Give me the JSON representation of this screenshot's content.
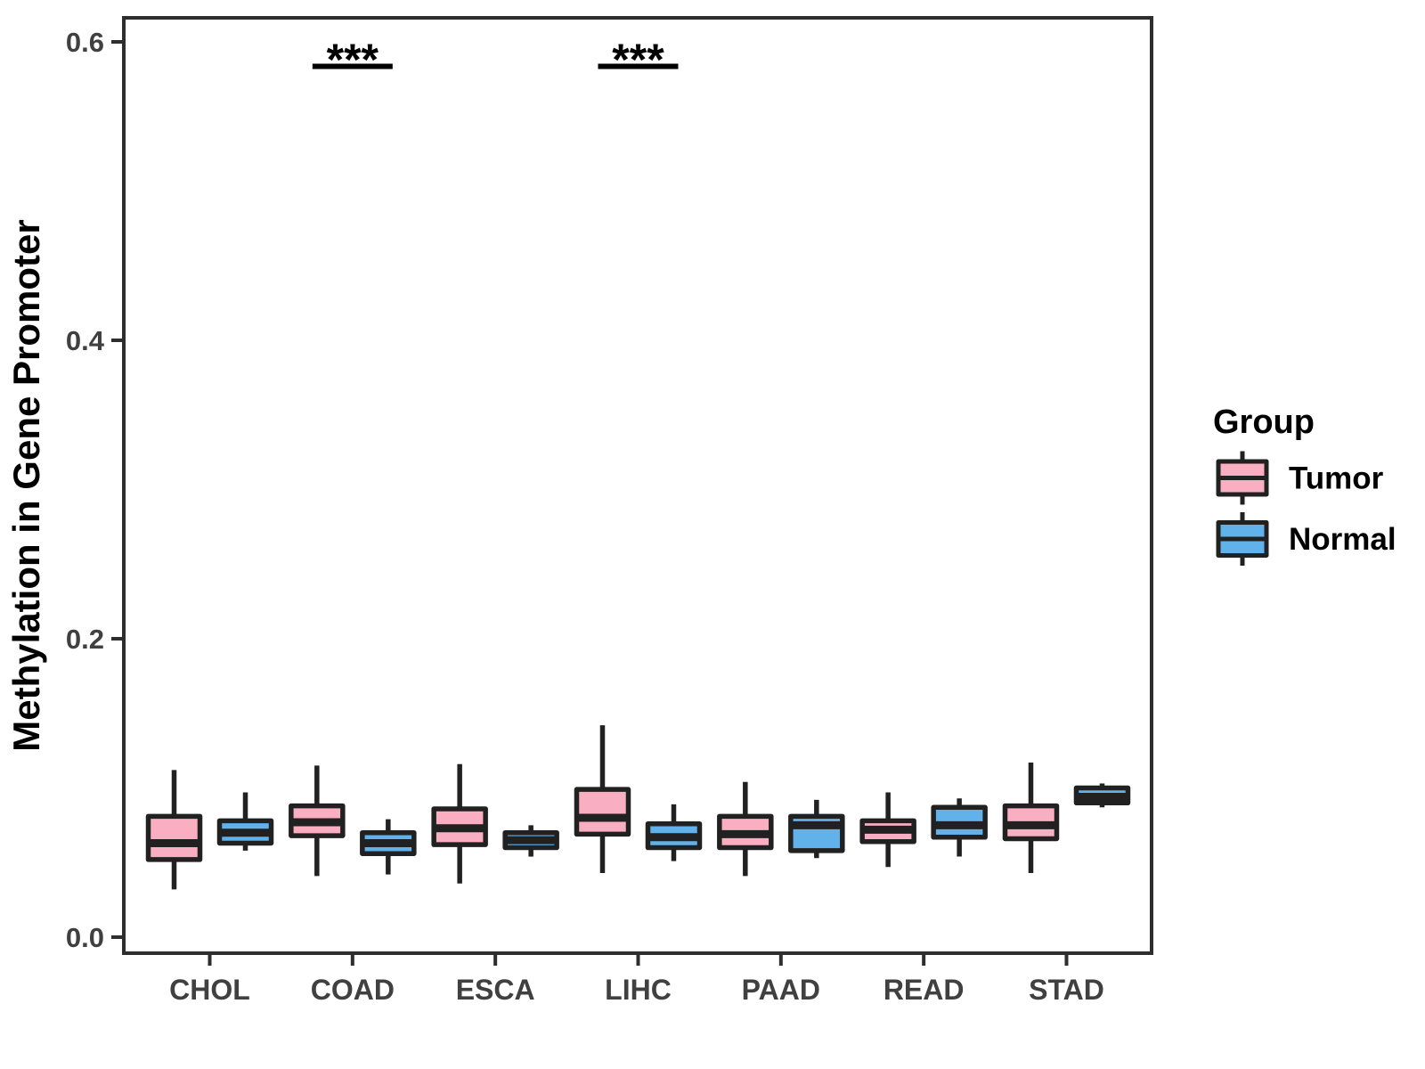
{
  "chart_data": {
    "type": "boxplot",
    "title": "",
    "xlabel": "",
    "ylabel": "Methylation in Gene Promoter",
    "categories": [
      "CHOL",
      "COAD",
      "ESCA",
      "LIHC",
      "PAAD",
      "READ",
      "STAD"
    ],
    "yticks": [
      {
        "value": 0.0,
        "label": "0.0"
      },
      {
        "value": 0.2,
        "label": "0.2"
      },
      {
        "value": 0.4,
        "label": "0.4"
      },
      {
        "value": 0.6,
        "label": "0.6"
      }
    ],
    "ylim": [
      0.0,
      0.62
    ],
    "grid": false,
    "legend": {
      "title": "Group",
      "position": "right",
      "entries": [
        {
          "label": "Tumor",
          "color": "#F9AFC1"
        },
        {
          "label": "Normal",
          "color": "#61B2EA"
        }
      ]
    },
    "series": [
      {
        "name": "Tumor",
        "color": "#F9AFC1",
        "boxes": [
          {
            "category": "CHOL",
            "whisker_low": 0.032,
            "q1": 0.052,
            "median": 0.063,
            "q3": 0.081,
            "whisker_high": 0.112
          },
          {
            "category": "COAD",
            "whisker_low": 0.041,
            "q1": 0.068,
            "median": 0.077,
            "q3": 0.088,
            "whisker_high": 0.115
          },
          {
            "category": "ESCA",
            "whisker_low": 0.036,
            "q1": 0.062,
            "median": 0.073,
            "q3": 0.086,
            "whisker_high": 0.116
          },
          {
            "category": "LIHC",
            "whisker_low": 0.043,
            "q1": 0.069,
            "median": 0.08,
            "q3": 0.099,
            "whisker_high": 0.142
          },
          {
            "category": "PAAD",
            "whisker_low": 0.041,
            "q1": 0.06,
            "median": 0.069,
            "q3": 0.081,
            "whisker_high": 0.104
          },
          {
            "category": "READ",
            "whisker_low": 0.047,
            "q1": 0.064,
            "median": 0.072,
            "q3": 0.078,
            "whisker_high": 0.097
          },
          {
            "category": "STAD",
            "whisker_low": 0.043,
            "q1": 0.066,
            "median": 0.075,
            "q3": 0.088,
            "whisker_high": 0.117
          }
        ]
      },
      {
        "name": "Normal",
        "color": "#61B2EA",
        "boxes": [
          {
            "category": "CHOL",
            "whisker_low": 0.058,
            "q1": 0.063,
            "median": 0.07,
            "q3": 0.078,
            "whisker_high": 0.097
          },
          {
            "category": "COAD",
            "whisker_low": 0.042,
            "q1": 0.056,
            "median": 0.063,
            "q3": 0.07,
            "whisker_high": 0.079
          },
          {
            "category": "ESCA",
            "whisker_low": 0.054,
            "q1": 0.06,
            "median": 0.065,
            "q3": 0.07,
            "whisker_high": 0.075
          },
          {
            "category": "LIHC",
            "whisker_low": 0.051,
            "q1": 0.06,
            "median": 0.067,
            "q3": 0.076,
            "whisker_high": 0.089
          },
          {
            "category": "PAAD",
            "whisker_low": 0.053,
            "q1": 0.058,
            "median": 0.075,
            "q3": 0.081,
            "whisker_high": 0.092
          },
          {
            "category": "READ",
            "whisker_low": 0.054,
            "q1": 0.067,
            "median": 0.075,
            "q3": 0.087,
            "whisker_high": 0.093
          },
          {
            "category": "STAD",
            "whisker_low": 0.087,
            "q1": 0.09,
            "median": 0.094,
            "q3": 0.1,
            "whisker_high": 0.103
          }
        ]
      }
    ],
    "significance": [
      {
        "category": "COAD",
        "label": "***"
      },
      {
        "category": "LIHC",
        "label": "***"
      }
    ],
    "colors": {
      "box_border": "#212121",
      "axis": "#2e2e2e",
      "tick_label": "#404040",
      "axis_title": "#000000",
      "legend_text": "#000000",
      "significance": "#000000",
      "background": "#ffffff"
    }
  }
}
